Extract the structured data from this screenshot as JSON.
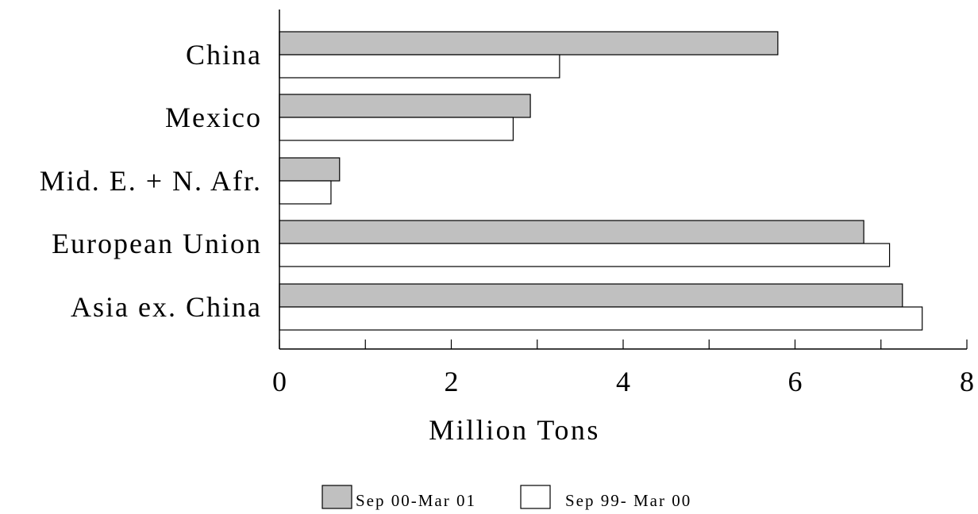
{
  "chart_data": {
    "type": "bar",
    "orientation": "horizontal",
    "categories": [
      "China",
      "Mexico",
      "Mid. E. + N. Afr.",
      "European Union",
      "Asia ex. China"
    ],
    "series": [
      {
        "name": "Sep 00-Mar 01",
        "color": "#c0c0c0",
        "values": [
          5.8,
          2.92,
          0.7,
          6.8,
          7.25
        ]
      },
      {
        "name": "Sep 99- Mar 00",
        "color": "#ffffff",
        "values": [
          3.26,
          2.72,
          0.6,
          7.1,
          7.48
        ]
      }
    ],
    "title": "",
    "xlabel": "Million Tons",
    "ylabel": "",
    "xlim": [
      0,
      8
    ],
    "xticks": [
      0,
      2,
      4,
      6,
      8
    ],
    "xtick_labels": [
      "0",
      "2",
      "4",
      "6",
      "8"
    ],
    "grid": false,
    "legend_position": "bottom-center"
  }
}
